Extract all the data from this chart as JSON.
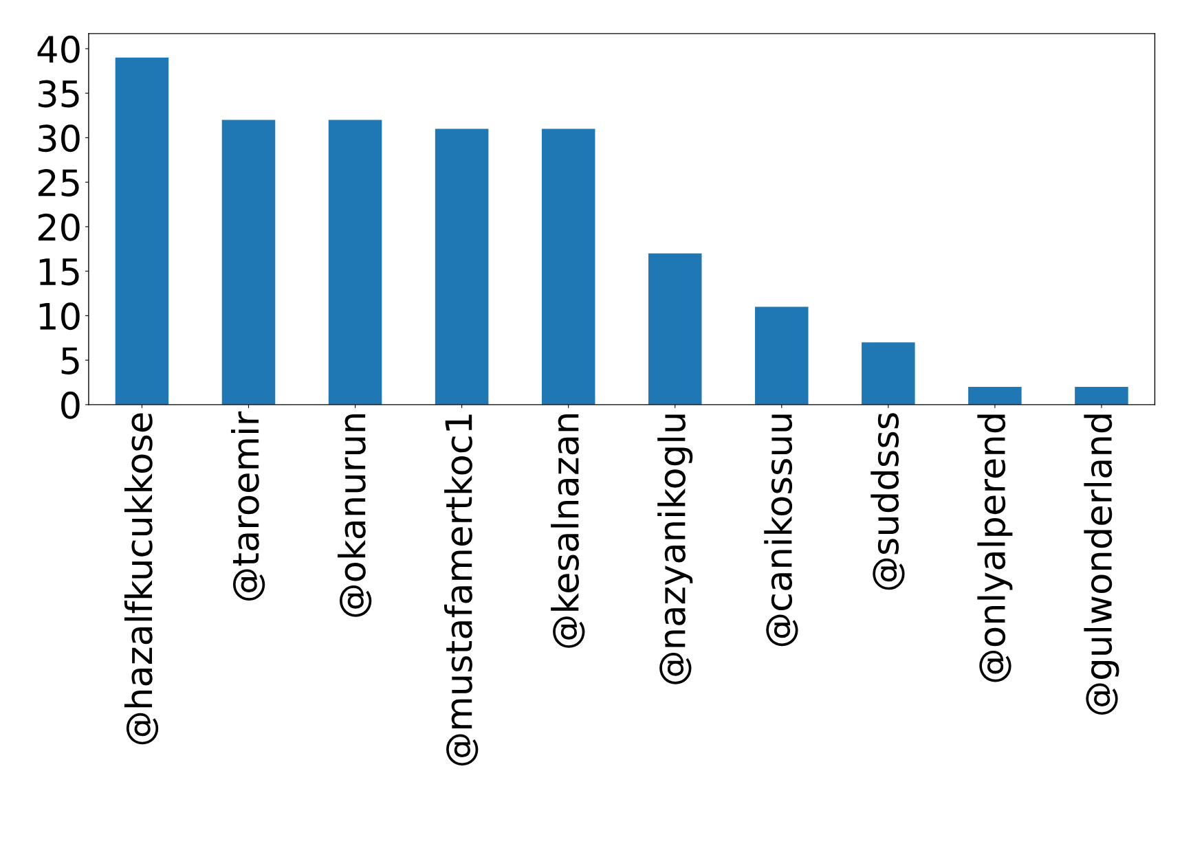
{
  "chart_data": {
    "type": "bar",
    "categories": [
      "@hazalfkucukkose",
      "@taroemir",
      "@okanurun",
      "@mustafamertkoc1",
      "@kesalnazan",
      "@nazyanikoglu",
      "@canikossuu",
      "@suddsss",
      "@onlyalperend",
      "@gulwonderland"
    ],
    "values": [
      39,
      32,
      32,
      31,
      31,
      17,
      11,
      7,
      2,
      2
    ],
    "color": "#1f77b4",
    "ylim": [
      0,
      41.7
    ],
    "yticks": [
      0,
      5,
      10,
      15,
      20,
      25,
      30,
      35,
      40
    ],
    "grid": false,
    "legend": false
  }
}
